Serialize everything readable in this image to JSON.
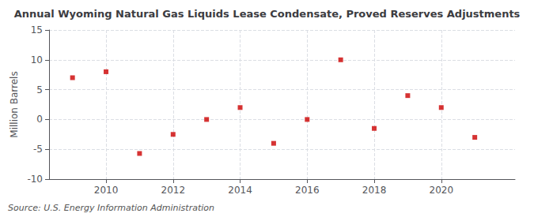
{
  "chart_data": {
    "type": "scatter",
    "title": "Annual Wyoming Natural Gas Liquids Lease Condensate, Proved Reserves Adjustments",
    "ylabel": "Million Barrels",
    "source": "Source: U.S. Energy Information Administration",
    "x": [
      2009,
      2010,
      2011,
      2012,
      2013,
      2014,
      2015,
      2016,
      2017,
      2018,
      2019,
      2020,
      2021
    ],
    "values": [
      7.0,
      8.0,
      -5.7,
      -2.5,
      0.0,
      2.0,
      -4.0,
      0.0,
      10.0,
      -1.5,
      4.0,
      2.0,
      -3.0
    ],
    "color": "#cc0000",
    "marker": "square",
    "xlim": [
      2008.3,
      2022.2
    ],
    "xticks": [
      2010,
      2012,
      2014,
      2016,
      2018,
      2020
    ],
    "ylim": [
      -10,
      15
    ],
    "yticks": [
      -10,
      -5,
      0,
      5,
      10,
      15
    ],
    "grid": true
  }
}
